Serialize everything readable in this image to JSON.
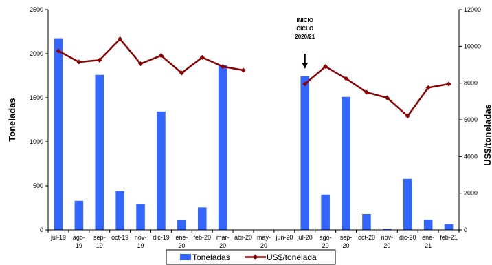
{
  "chart_data": {
    "type": "bar",
    "categories": [
      [
        "jul-19"
      ],
      [
        "ago-",
        "19"
      ],
      [
        "sep-",
        "19"
      ],
      [
        "oct-19"
      ],
      [
        "nov-",
        "19"
      ],
      [
        "dic-19"
      ],
      [
        "ene-",
        "20"
      ],
      [
        "feb-20"
      ],
      [
        "mar-",
        "20"
      ],
      [
        "abr-20"
      ],
      [
        "may-",
        "20"
      ],
      [
        "jun-20"
      ],
      [
        "jul-20"
      ],
      [
        "ago-",
        "20"
      ],
      [
        "sep-",
        "20"
      ],
      [
        "oct-20"
      ],
      [
        "nov-",
        "20"
      ],
      [
        "dic-20"
      ],
      [
        "ene-",
        "21"
      ],
      [
        "feb-21"
      ]
    ],
    "series": [
      {
        "name": "Toneladas",
        "type": "bar",
        "axis": "left",
        "color": "#3366ff",
        "values": [
          2175,
          330,
          1760,
          440,
          295,
          1345,
          110,
          255,
          1870,
          3,
          null,
          null,
          1745,
          400,
          1510,
          180,
          12,
          580,
          115,
          65
        ]
      },
      {
        "name": "US$/tonelada",
        "type": "line",
        "axis": "right",
        "color": "#8b0000",
        "values": [
          9750,
          9150,
          9250,
          10400,
          9050,
          9500,
          8550,
          9400,
          8900,
          8700,
          null,
          null,
          7950,
          8900,
          8250,
          7500,
          7200,
          6200,
          7750,
          7950
        ]
      }
    ],
    "ylabel": "Toneladas",
    "y2label": "US$/toneladas",
    "ylim": [
      0,
      2500
    ],
    "y2lim": [
      0,
      12000
    ],
    "yticks": [
      "0",
      "500",
      "1000",
      "1500",
      "2000",
      "2500"
    ],
    "y2ticks": [
      "0",
      "2000",
      "4000",
      "6000",
      "8000",
      "10000",
      "12000"
    ],
    "annotation": {
      "lines": [
        "INICIO",
        "CICLO",
        "2020/21"
      ],
      "category_index": 12
    },
    "legend_position": "bottom",
    "grid": false
  }
}
